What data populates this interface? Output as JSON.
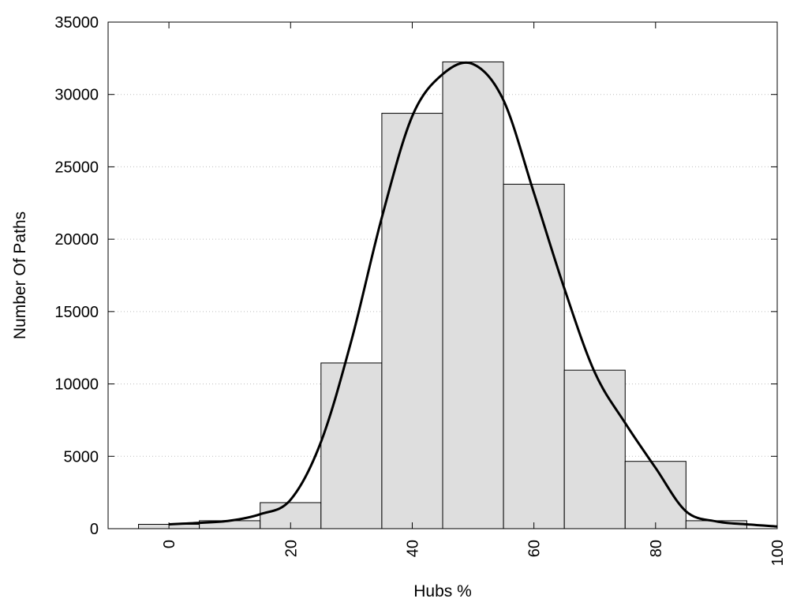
{
  "chart_data": {
    "type": "bar",
    "title": "",
    "xlabel": "Hubs %",
    "ylabel": "Number Of Paths",
    "xlim": [
      -10,
      100
    ],
    "ylim": [
      0,
      35000
    ],
    "grid": true,
    "x_ticks": [
      0,
      20,
      40,
      60,
      80,
      100
    ],
    "y_ticks": [
      0,
      5000,
      10000,
      15000,
      20000,
      25000,
      30000,
      35000
    ],
    "bin_width": 10,
    "bars": [
      {
        "x": 0,
        "value": 300
      },
      {
        "x": 10,
        "value": 550
      },
      {
        "x": 20,
        "value": 1800
      },
      {
        "x": 30,
        "value": 11450
      },
      {
        "x": 40,
        "value": 28700
      },
      {
        "x": 50,
        "value": 32250
      },
      {
        "x": 60,
        "value": 23800
      },
      {
        "x": 70,
        "value": 10950
      },
      {
        "x": 80,
        "value": 4650
      },
      {
        "x": 90,
        "value": 550
      }
    ],
    "curve": {
      "x": [
        0,
        5,
        10,
        15,
        20,
        25,
        30,
        35,
        40,
        45,
        50,
        55,
        60,
        65,
        70,
        75,
        80,
        85,
        90,
        95,
        100
      ],
      "y": [
        300,
        400,
        550,
        1000,
        2000,
        6000,
        13000,
        21500,
        28500,
        31400,
        32100,
        29600,
        23200,
        16600,
        10800,
        7300,
        4200,
        1200,
        500,
        300,
        150
      ]
    }
  }
}
